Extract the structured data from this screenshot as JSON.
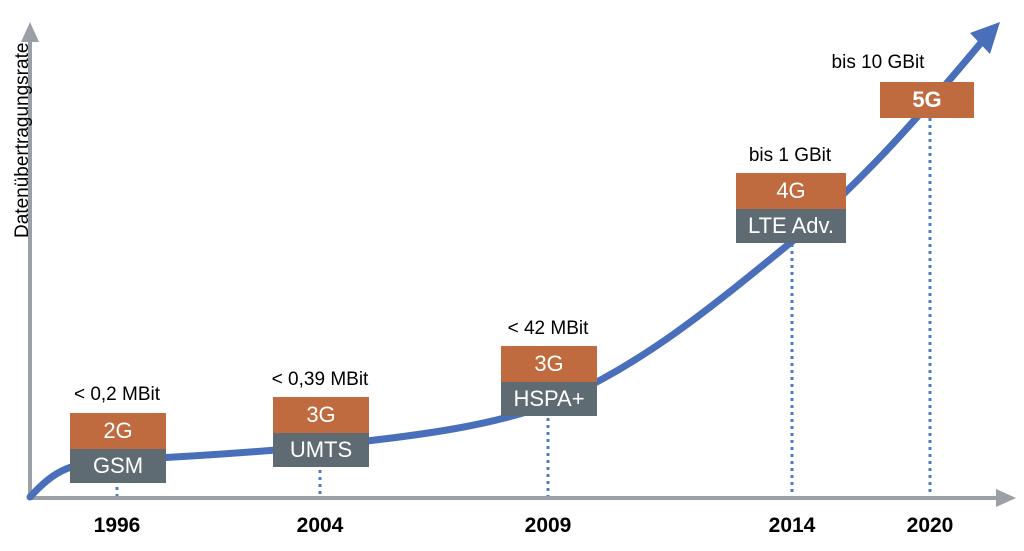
{
  "axis": {
    "y_title": "Datenübertragungsrate"
  },
  "colors": {
    "generation": "#bf6b3f",
    "technology": "#5f6b72",
    "curve": "#4a6fba",
    "axis": "#9aa0a6",
    "guide": "#4a7fc1"
  },
  "milestones": [
    {
      "year": "1996",
      "rate": "< 0,2 MBit",
      "generation": "2G",
      "technology": "GSM"
    },
    {
      "year": "2004",
      "rate": "< 0,39 MBit",
      "generation": "3G",
      "technology": "UMTS"
    },
    {
      "year": "2009",
      "rate": "< 42 MBit",
      "generation": "3G",
      "technology": "HSPA+"
    },
    {
      "year": "2014",
      "rate": "bis 1 GBit",
      "generation": "4G",
      "technology": "LTE Adv."
    },
    {
      "year": "2020",
      "rate": "bis 10 GBit",
      "generation": "5G",
      "technology": ""
    }
  ]
}
